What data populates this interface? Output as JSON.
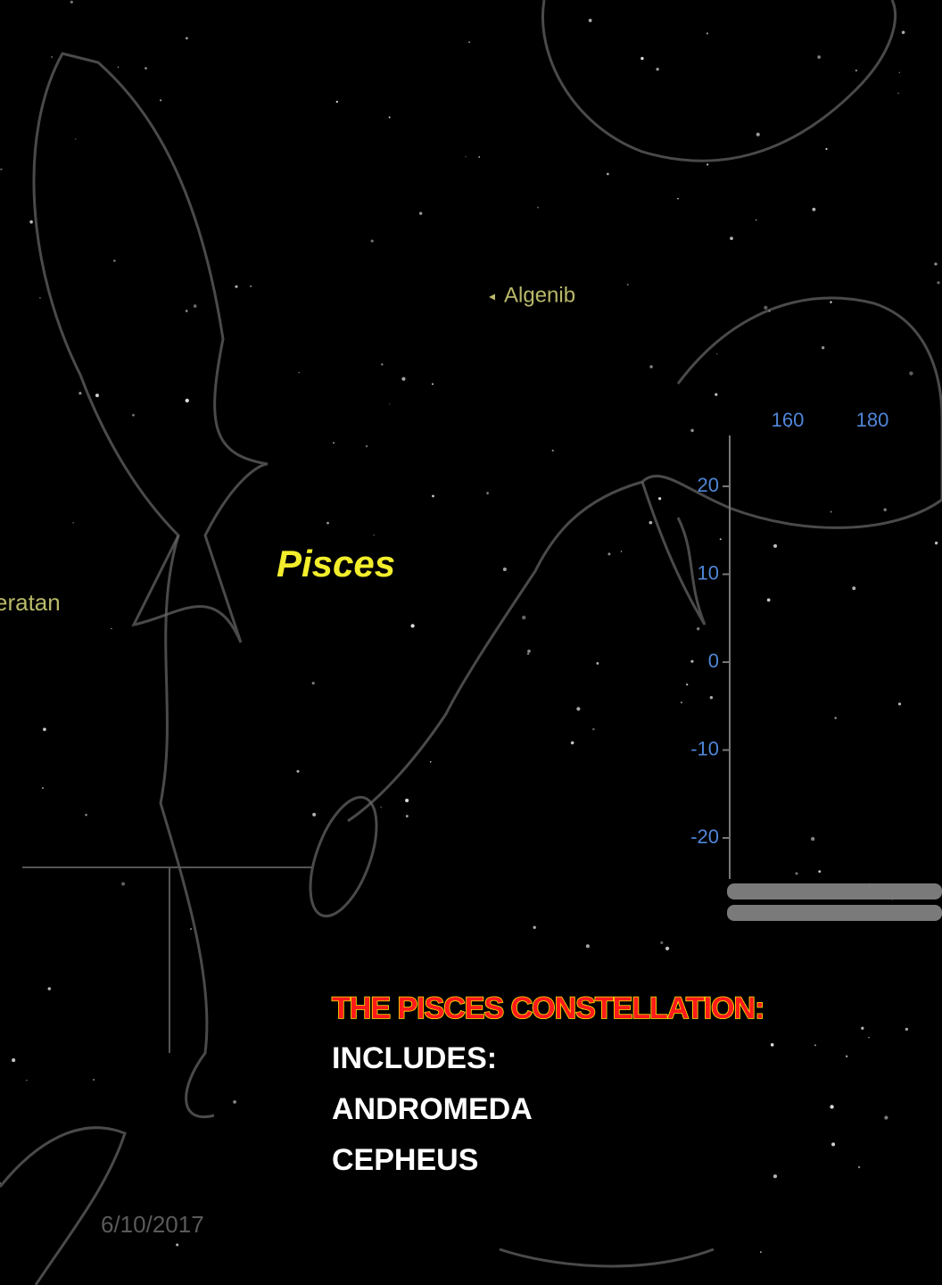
{
  "map": {
    "labels": [
      "Algenib",
      "Pisces",
      "eratan"
    ],
    "axis": {
      "top_ticks": [
        "160",
        "180"
      ],
      "side_ticks": [
        "20",
        "10",
        "0",
        "-10",
        "-20"
      ]
    }
  },
  "textbox": {
    "title": "THE PISCES CONSTELLATION:",
    "lines": [
      "INCLUDES:",
      "ANDROMEDA",
      "CEPHEUS"
    ]
  },
  "footer": {
    "date": "6/10/2017"
  }
}
